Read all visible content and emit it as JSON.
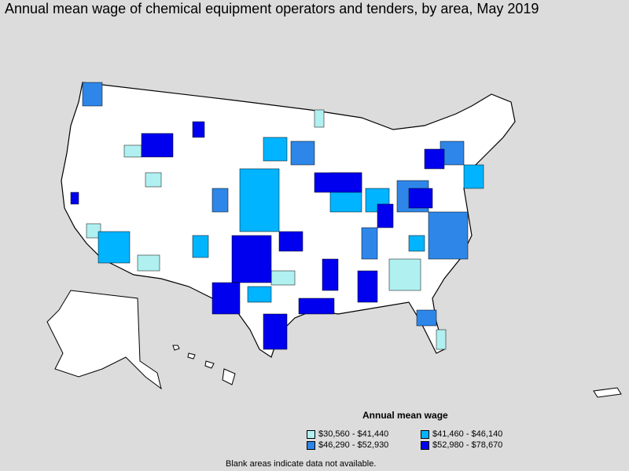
{
  "title": "Annual mean wage of chemical equipment operators and tenders, by area, May 2019",
  "legend": {
    "title": "Annual mean wage",
    "items": [
      {
        "label": "$30,560 - $41,440",
        "color": "#b0f0f0"
      },
      {
        "label": "$41,460 - $46,140",
        "color": "#00b4ff"
      },
      {
        "label": "$46,290 - $52,930",
        "color": "#2e86e8"
      },
      {
        "label": "$52,980 - $78,670",
        "color": "#0000ee"
      }
    ]
  },
  "note": "Blank areas indicate data not available.",
  "colors": {
    "background": "#dcdcdc",
    "land": "#ffffff",
    "border": "#000000"
  }
}
